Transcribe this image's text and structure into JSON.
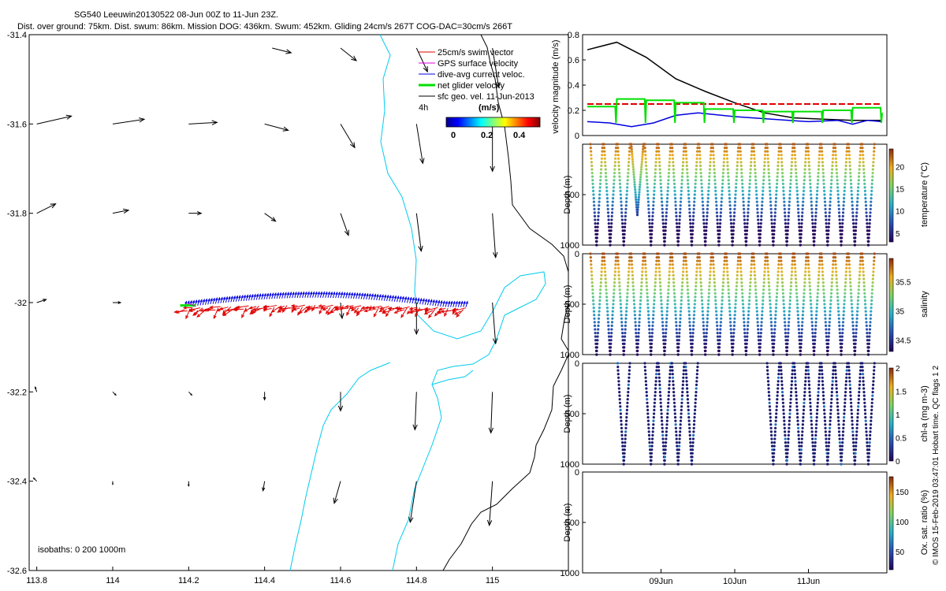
{
  "title": {
    "line1": "SG540 Leeuwin20130522 08-Jun 00Z to 11-Jun 23Z.",
    "line2": "Dist. over ground: 75km. Dist. swum: 86km. Mission DOG: 436km. Swum: 452km. Gliding 24cm/s 267T COG-DAC=30cm/s 266T"
  },
  "side_caption": "© IMOS 15-Feb-2019 03:47:01 Hobart time. QC flags 1  2",
  "colors": {
    "coast": "#00ccee",
    "isobath": "#000000",
    "swim": "#e00000",
    "gps": "#e000e0",
    "dac": "#0000e0",
    "net": "#00e000",
    "geo": "#000000"
  },
  "chart_data": [
    {
      "type": "map",
      "name": "track-map",
      "xlim": [
        113.78,
        115.2
      ],
      "ylim": [
        -32.6,
        -31.4
      ],
      "x_ticks": [
        "113.8",
        "114",
        "114.2",
        "114.4",
        "114.6",
        "114.8",
        "115"
      ],
      "y_ticks": [
        "-31.4",
        "-31.6",
        "-31.8",
        "-32",
        "-32.2",
        "-32.4",
        "-32.6"
      ],
      "legend": {
        "items": [
          "25cm/s swim vector",
          "GPS surface velocity",
          "dive-avg current veloc.",
          "net glider velocity",
          "sfc geo. vel. 11-Jun-2013"
        ],
        "interval": "4h",
        "units": "(m/s)",
        "cbar_ticks": [
          "0",
          "0.2",
          "0.4"
        ]
      },
      "isobath_label": "isobaths: 0   200  1000m",
      "track": {
        "lon_start": 114.19,
        "lon_end": 114.93,
        "lat_center": -32.01
      },
      "geo_vectors": [
        {
          "lon": 113.8,
          "lat": -31.6,
          "u": 0.22,
          "v": 0.05
        },
        {
          "lon": 114.0,
          "lat": -31.6,
          "u": 0.2,
          "v": 0.03
        },
        {
          "lon": 114.2,
          "lat": -31.6,
          "u": 0.18,
          "v": 0.01
        },
        {
          "lon": 114.4,
          "lat": -31.6,
          "u": 0.15,
          "v": -0.04
        },
        {
          "lon": 114.6,
          "lat": -31.6,
          "u": 0.09,
          "v": -0.15
        },
        {
          "lon": 114.8,
          "lat": -31.6,
          "u": 0.04,
          "v": -0.25
        },
        {
          "lon": 115.0,
          "lat": -31.6,
          "u": 0.0,
          "v": -0.3
        },
        {
          "lon": 114.42,
          "lat": -31.43,
          "u": 0.12,
          "v": -0.03
        },
        {
          "lon": 114.6,
          "lat": -31.43,
          "u": 0.1,
          "v": -0.08
        },
        {
          "lon": 114.8,
          "lat": -31.43,
          "u": 0.07,
          "v": -0.15
        },
        {
          "lon": 115.0,
          "lat": -31.43,
          "u": 0.04,
          "v": -0.25
        },
        {
          "lon": 113.8,
          "lat": -31.8,
          "u": 0.12,
          "v": 0.06
        },
        {
          "lon": 114.0,
          "lat": -31.8,
          "u": 0.1,
          "v": 0.02
        },
        {
          "lon": 114.2,
          "lat": -31.8,
          "u": 0.08,
          "v": 0.0
        },
        {
          "lon": 114.4,
          "lat": -31.8,
          "u": 0.07,
          "v": -0.05
        },
        {
          "lon": 114.6,
          "lat": -31.8,
          "u": 0.05,
          "v": -0.14
        },
        {
          "lon": 114.8,
          "lat": -31.8,
          "u": 0.03,
          "v": -0.24
        },
        {
          "lon": 115.0,
          "lat": -31.8,
          "u": 0.02,
          "v": -0.28
        },
        {
          "lon": 113.8,
          "lat": -32.0,
          "u": 0.06,
          "v": 0.02
        },
        {
          "lon": 114.0,
          "lat": -32.0,
          "u": 0.05,
          "v": 0.0
        },
        {
          "lon": 114.6,
          "lat": -32.0,
          "u": 0.01,
          "v": -0.1
        },
        {
          "lon": 114.8,
          "lat": -32.0,
          "u": 0.0,
          "v": -0.2
        },
        {
          "lon": 115.0,
          "lat": -32.0,
          "u": 0.02,
          "v": -0.26
        },
        {
          "lon": 113.8,
          "lat": -32.2,
          "u": -0.01,
          "v": 0.03
        },
        {
          "lon": 114.0,
          "lat": -32.2,
          "u": 0.02,
          "v": -0.02
        },
        {
          "lon": 114.2,
          "lat": -32.2,
          "u": 0.02,
          "v": -0.02
        },
        {
          "lon": 114.4,
          "lat": -32.2,
          "u": 0.0,
          "v": -0.05
        },
        {
          "lon": 114.6,
          "lat": -32.2,
          "u": 0.0,
          "v": -0.12
        },
        {
          "lon": 114.8,
          "lat": -32.2,
          "u": -0.01,
          "v": -0.24
        },
        {
          "lon": 115.0,
          "lat": -32.2,
          "u": -0.01,
          "v": -0.26
        },
        {
          "lon": 113.8,
          "lat": -32.4,
          "u": -0.02,
          "v": 0.02
        },
        {
          "lon": 114.0,
          "lat": -32.4,
          "u": 0.0,
          "v": -0.02
        },
        {
          "lon": 114.2,
          "lat": -32.4,
          "u": 0.0,
          "v": -0.03
        },
        {
          "lon": 114.4,
          "lat": -32.4,
          "u": -0.01,
          "v": -0.06
        },
        {
          "lon": 114.6,
          "lat": -32.4,
          "u": -0.04,
          "v": -0.14
        },
        {
          "lon": 114.8,
          "lat": -32.4,
          "u": -0.04,
          "v": -0.26
        },
        {
          "lon": 115.0,
          "lat": -32.4,
          "u": -0.02,
          "v": -0.28
        },
        {
          "lon": 115.2,
          "lat": -32.45,
          "u": 0.0,
          "v": -0.05
        }
      ]
    },
    {
      "type": "line",
      "name": "velocity-panel",
      "ylabel": "velocity magnitude (m/s)",
      "ylim": [
        0,
        0.8
      ],
      "y_ticks": [
        "0",
        "0.2",
        "0.4",
        "0.6",
        "0.8"
      ],
      "x_ticks": [
        "09Jun",
        "10Jun",
        "11Jun"
      ],
      "series": [
        {
          "name": "sfc geo speed",
          "color": "#000000",
          "t": [
            0,
            0.4,
            0.8,
            1.2,
            1.6,
            2.0,
            2.4,
            2.8,
            3.2,
            3.6,
            4.0
          ],
          "v": [
            0.68,
            0.74,
            0.62,
            0.45,
            0.35,
            0.26,
            0.18,
            0.14,
            0.13,
            0.12,
            0.12
          ]
        },
        {
          "name": "25cm/s swim",
          "color": "#e00000",
          "dashed": true,
          "t": [
            0,
            4.0
          ],
          "v": [
            0.25,
            0.25
          ]
        },
        {
          "name": "dive-avg current",
          "color": "#0000e0",
          "t": [
            0,
            0.3,
            0.6,
            0.9,
            1.2,
            1.5,
            2.0,
            2.5,
            3.0,
            3.4,
            3.6,
            3.8,
            4.0
          ],
          "v": [
            0.11,
            0.1,
            0.07,
            0.1,
            0.16,
            0.18,
            0.15,
            0.13,
            0.11,
            0.12,
            0.09,
            0.12,
            0.11
          ]
        },
        {
          "name": "net glider velocity",
          "color": "#00e000",
          "t": [
            0,
            0.4,
            0.8,
            1.2,
            1.6,
            2.0,
            2.4,
            2.8,
            3.2,
            3.6,
            4.0
          ],
          "v": [
            0.23,
            0.29,
            0.28,
            0.26,
            0.21,
            0.2,
            0.19,
            0.19,
            0.2,
            0.22,
            0.18
          ]
        }
      ]
    },
    {
      "type": "scatter",
      "name": "temperature-panel",
      "ylabel": "Depth (m)",
      "clabel": "temperature (°C)",
      "ylim": [
        1000,
        0
      ],
      "y_ticks": [
        "500",
        "1000"
      ],
      "cbar_ticks": [
        "20",
        "15",
        "10",
        "5"
      ],
      "cmap_range": [
        3,
        24
      ],
      "dives": 21,
      "gaps": []
    },
    {
      "type": "scatter",
      "name": "salinity-panel",
      "ylabel": "Depth (m)",
      "clabel": "salinity",
      "ylim": [
        1000,
        0
      ],
      "y_ticks": [
        "0",
        "500",
        "1000"
      ],
      "cbar_ticks": [
        "35.5",
        "35",
        "34.5"
      ],
      "cmap_range": [
        34.3,
        35.9
      ],
      "dives": 21,
      "gaps": []
    },
    {
      "type": "scatter",
      "name": "chla-panel",
      "ylabel": "Depth (m)",
      "clabel": "chl-a (mg m-3)",
      "ylim": [
        1000,
        0
      ],
      "y_ticks": [
        "0",
        "500",
        "1000"
      ],
      "cbar_ticks": [
        "2",
        "1.5",
        "1",
        "0.5",
        "0"
      ],
      "cmap_range": [
        0,
        2
      ],
      "dives": 21,
      "gaps": [
        [
          0,
          1
        ],
        [
          3,
          3
        ],
        [
          8,
          12
        ]
      ]
    },
    {
      "type": "scatter",
      "name": "oxygen-panel",
      "ylabel": "Depth (m)",
      "clabel": "Ox. sat. ratio (%)",
      "ylim": [
        1000,
        0
      ],
      "y_ticks": [
        "0",
        "500",
        "1000"
      ],
      "cbar_ticks": [
        "150",
        "100",
        "50"
      ],
      "cmap_range": [
        20,
        175
      ],
      "dives": 0,
      "gaps": []
    }
  ]
}
